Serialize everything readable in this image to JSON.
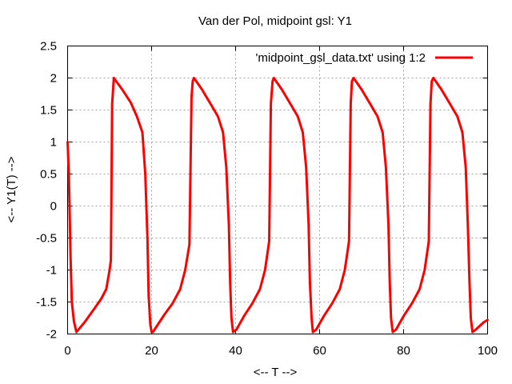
{
  "chart_data": {
    "type": "line",
    "title": "Van der Pol, midpoint gsl: Y1",
    "xlabel": "<-- T -->",
    "ylabel": "<-- Y1(T) -->",
    "xlim": [
      0,
      100
    ],
    "ylim": [
      -2,
      2.5
    ],
    "xticks": [
      0,
      20,
      40,
      60,
      80,
      100
    ],
    "yticks": [
      -2,
      -1.5,
      -1,
      -0.5,
      0,
      0.5,
      1,
      1.5,
      2,
      2.5
    ],
    "xtick_labels": [
      "0",
      "20",
      "40",
      "60",
      "80",
      "100"
    ],
    "ytick_labels": [
      "-2",
      "-1.5",
      "-1",
      "-0.5",
      "0",
      "0.5",
      "1",
      "1.5",
      "2",
      "2.5"
    ],
    "grid": true,
    "legend_position": "top-right",
    "series": [
      {
        "name": "'midpoint_gsl_data.txt' using 1:2",
        "color": "#ff0000",
        "x": [
          0,
          0.3,
          0.7,
          1.0,
          1.5,
          2.1,
          4.0,
          6.2,
          8.0,
          9.2,
          10.0,
          10.3,
          10.6,
          11.0,
          13.0,
          15.0,
          16.5,
          17.8,
          18.5,
          19.0,
          19.3,
          19.7,
          20.0,
          20.3,
          21.0,
          23.0,
          25.0,
          26.8,
          28.0,
          29.0,
          29.5,
          29.8,
          30.1,
          32.0,
          34.0,
          35.8,
          37.0,
          37.8,
          38.4,
          38.7,
          39.0,
          39.4,
          40.2,
          42.0,
          44.0,
          45.8,
          47.0,
          48.0,
          48.4,
          48.8,
          49.1,
          51.0,
          53.0,
          54.8,
          56.0,
          56.8,
          57.4,
          57.7,
          58.1,
          58.4,
          59.2,
          61.0,
          63.0,
          64.8,
          66.0,
          67.0,
          67.4,
          67.7,
          68.1,
          70.0,
          72.0,
          73.8,
          75.0,
          75.8,
          76.4,
          76.7,
          77.0,
          77.4,
          78.2,
          80.0,
          82.0,
          83.8,
          85.0,
          86.0,
          86.4,
          86.7,
          87.1,
          89.0,
          91.0,
          92.8,
          94.0,
          94.8,
          95.3,
          95.7,
          96.0,
          96.4,
          97.2,
          99.0,
          100.0
        ],
        "y": [
          1.0,
          0.5,
          -0.8,
          -1.5,
          -1.8,
          -1.97,
          -1.82,
          -1.62,
          -1.45,
          -1.3,
          -1.0,
          -0.85,
          1.6,
          2.0,
          1.82,
          1.62,
          1.4,
          1.15,
          0.5,
          -0.5,
          -1.4,
          -1.85,
          -1.97,
          -1.97,
          -1.9,
          -1.7,
          -1.52,
          -1.3,
          -1.0,
          -0.6,
          1.7,
          1.95,
          2.0,
          1.82,
          1.6,
          1.4,
          1.15,
          0.6,
          -0.3,
          -1.2,
          -1.75,
          -1.97,
          -1.93,
          -1.72,
          -1.52,
          -1.3,
          -1.0,
          -0.55,
          1.6,
          1.95,
          2.0,
          1.82,
          1.6,
          1.4,
          1.15,
          0.6,
          -0.3,
          -1.2,
          -1.75,
          -1.97,
          -1.93,
          -1.72,
          -1.52,
          -1.3,
          -1.0,
          -0.55,
          1.6,
          1.95,
          2.0,
          1.82,
          1.6,
          1.4,
          1.15,
          0.6,
          -0.3,
          -1.2,
          -1.75,
          -1.97,
          -1.93,
          -1.72,
          -1.52,
          -1.3,
          -1.0,
          -0.55,
          1.6,
          1.95,
          2.0,
          1.82,
          1.6,
          1.4,
          1.15,
          0.6,
          -0.3,
          -1.2,
          -1.75,
          -1.97,
          -1.93,
          -1.82,
          -1.78
        ]
      }
    ]
  }
}
